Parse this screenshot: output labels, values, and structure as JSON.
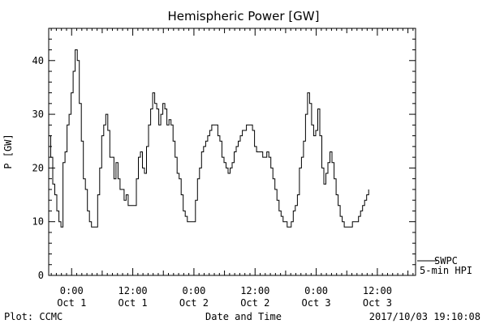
{
  "chart_data": {
    "type": "line",
    "title": "Hemispheric Power [GW]",
    "ylabel": "P [GW]",
    "xlabel": "Date and Time",
    "ylim": [
      0,
      46
    ],
    "xlim": [
      -4.5,
      67.5
    ],
    "y_ticks": [
      0,
      10,
      20,
      30,
      40
    ],
    "x_ticks": [
      {
        "x": 0,
        "time": "0:00",
        "date": "Oct 1"
      },
      {
        "x": 12,
        "time": "12:00",
        "date": "Oct 1"
      },
      {
        "x": 24,
        "time": "0:00",
        "date": "Oct 2"
      },
      {
        "x": 36,
        "time": "12:00",
        "date": "Oct 2"
      },
      {
        "x": 48,
        "time": "0:00",
        "date": "Oct 3"
      },
      {
        "x": 60,
        "time": "12:00",
        "date": "Oct 3"
      }
    ],
    "legend": {
      "labels": [
        "SWPC",
        "5-min HPI"
      ],
      "placement": "bottom-right-outside"
    },
    "footer": {
      "left": "Plot: CCMC",
      "right": "2017/10/03 19:10:08"
    },
    "grid": false,
    "series": [
      {
        "name": "SWPC",
        "points": [
          [
            -4.5,
            26
          ],
          [
            -4.1,
            22
          ],
          [
            -3.7,
            17
          ],
          [
            -3.3,
            15
          ],
          [
            -2.9,
            12
          ],
          [
            -2.5,
            10
          ],
          [
            -2.1,
            9
          ],
          [
            -1.7,
            21
          ],
          [
            -1.3,
            23
          ],
          [
            -0.9,
            28
          ],
          [
            -0.5,
            30
          ],
          [
            -0.1,
            34
          ],
          [
            0.3,
            38
          ],
          [
            0.7,
            42
          ],
          [
            1.1,
            40
          ],
          [
            1.5,
            32
          ],
          [
            1.9,
            25
          ],
          [
            2.3,
            18
          ],
          [
            2.7,
            16
          ],
          [
            3.1,
            12
          ],
          [
            3.5,
            10
          ],
          [
            3.9,
            9
          ],
          [
            4.7,
            9
          ],
          [
            5.1,
            15
          ],
          [
            5.5,
            20
          ],
          [
            5.9,
            26
          ],
          [
            6.3,
            28
          ],
          [
            6.7,
            30
          ],
          [
            7.1,
            27
          ],
          [
            7.5,
            22
          ],
          [
            7.9,
            22
          ],
          [
            8.3,
            18
          ],
          [
            8.7,
            21
          ],
          [
            9.1,
            18
          ],
          [
            9.5,
            16
          ],
          [
            10.3,
            14
          ],
          [
            10.7,
            15
          ],
          [
            11.1,
            13
          ],
          [
            12.3,
            13
          ],
          [
            12.7,
            18
          ],
          [
            13.1,
            22
          ],
          [
            13.5,
            23
          ],
          [
            13.9,
            20
          ],
          [
            14.3,
            19
          ],
          [
            14.7,
            24
          ],
          [
            15.1,
            28
          ],
          [
            15.5,
            31
          ],
          [
            15.9,
            34
          ],
          [
            16.3,
            32
          ],
          [
            16.7,
            31
          ],
          [
            17.1,
            28
          ],
          [
            17.5,
            30
          ],
          [
            17.9,
            32
          ],
          [
            18.3,
            31
          ],
          [
            18.7,
            28
          ],
          [
            19.1,
            29
          ],
          [
            19.5,
            28
          ],
          [
            19.9,
            25
          ],
          [
            20.3,
            22
          ],
          [
            20.7,
            19
          ],
          [
            21.1,
            18
          ],
          [
            21.5,
            15
          ],
          [
            21.9,
            12
          ],
          [
            22.3,
            11
          ],
          [
            22.7,
            10
          ],
          [
            23.9,
            10
          ],
          [
            24.3,
            14
          ],
          [
            24.7,
            18
          ],
          [
            25.1,
            20
          ],
          [
            25.5,
            23
          ],
          [
            25.9,
            24
          ],
          [
            26.3,
            25
          ],
          [
            26.7,
            26
          ],
          [
            27.1,
            27
          ],
          [
            27.5,
            28
          ],
          [
            28.3,
            28
          ],
          [
            28.7,
            26
          ],
          [
            29.1,
            25
          ],
          [
            29.5,
            22
          ],
          [
            29.9,
            21
          ],
          [
            30.3,
            20
          ],
          [
            30.7,
            19
          ],
          [
            31.1,
            20
          ],
          [
            31.5,
            21
          ],
          [
            31.9,
            23
          ],
          [
            32.3,
            24
          ],
          [
            32.7,
            25
          ],
          [
            33.1,
            26
          ],
          [
            33.5,
            27
          ],
          [
            33.9,
            27
          ],
          [
            34.3,
            28
          ],
          [
            35.5,
            27
          ],
          [
            35.9,
            24
          ],
          [
            36.3,
            23
          ],
          [
            37.1,
            23
          ],
          [
            37.5,
            22
          ],
          [
            37.9,
            22
          ],
          [
            38.3,
            23
          ],
          [
            38.7,
            22
          ],
          [
            39.1,
            20
          ],
          [
            39.5,
            18
          ],
          [
            39.9,
            16
          ],
          [
            40.3,
            14
          ],
          [
            40.7,
            12
          ],
          [
            41.1,
            11
          ],
          [
            41.5,
            10
          ],
          [
            41.9,
            10
          ],
          [
            42.3,
            9
          ],
          [
            42.7,
            9
          ],
          [
            43.1,
            10
          ],
          [
            43.5,
            12
          ],
          [
            43.9,
            13
          ],
          [
            44.3,
            15
          ],
          [
            44.7,
            20
          ],
          [
            45.1,
            22
          ],
          [
            45.5,
            25
          ],
          [
            45.9,
            30
          ],
          [
            46.3,
            34
          ],
          [
            46.7,
            32
          ],
          [
            47.1,
            28
          ],
          [
            47.5,
            26
          ],
          [
            47.9,
            27
          ],
          [
            48.3,
            31
          ],
          [
            48.7,
            26
          ],
          [
            49.1,
            20
          ],
          [
            49.5,
            17
          ],
          [
            49.9,
            19
          ],
          [
            50.3,
            21
          ],
          [
            50.7,
            23
          ],
          [
            51.1,
            21
          ],
          [
            51.5,
            18
          ],
          [
            51.9,
            15
          ],
          [
            52.3,
            13
          ],
          [
            52.7,
            11
          ],
          [
            53.1,
            10
          ],
          [
            53.5,
            9
          ],
          [
            54.7,
            9
          ],
          [
            55.1,
            10
          ],
          [
            55.9,
            10
          ],
          [
            56.3,
            11
          ],
          [
            56.7,
            12
          ],
          [
            57.1,
            13
          ],
          [
            57.5,
            14
          ],
          [
            57.9,
            15
          ],
          [
            58.3,
            16
          ]
        ]
      }
    ]
  }
}
